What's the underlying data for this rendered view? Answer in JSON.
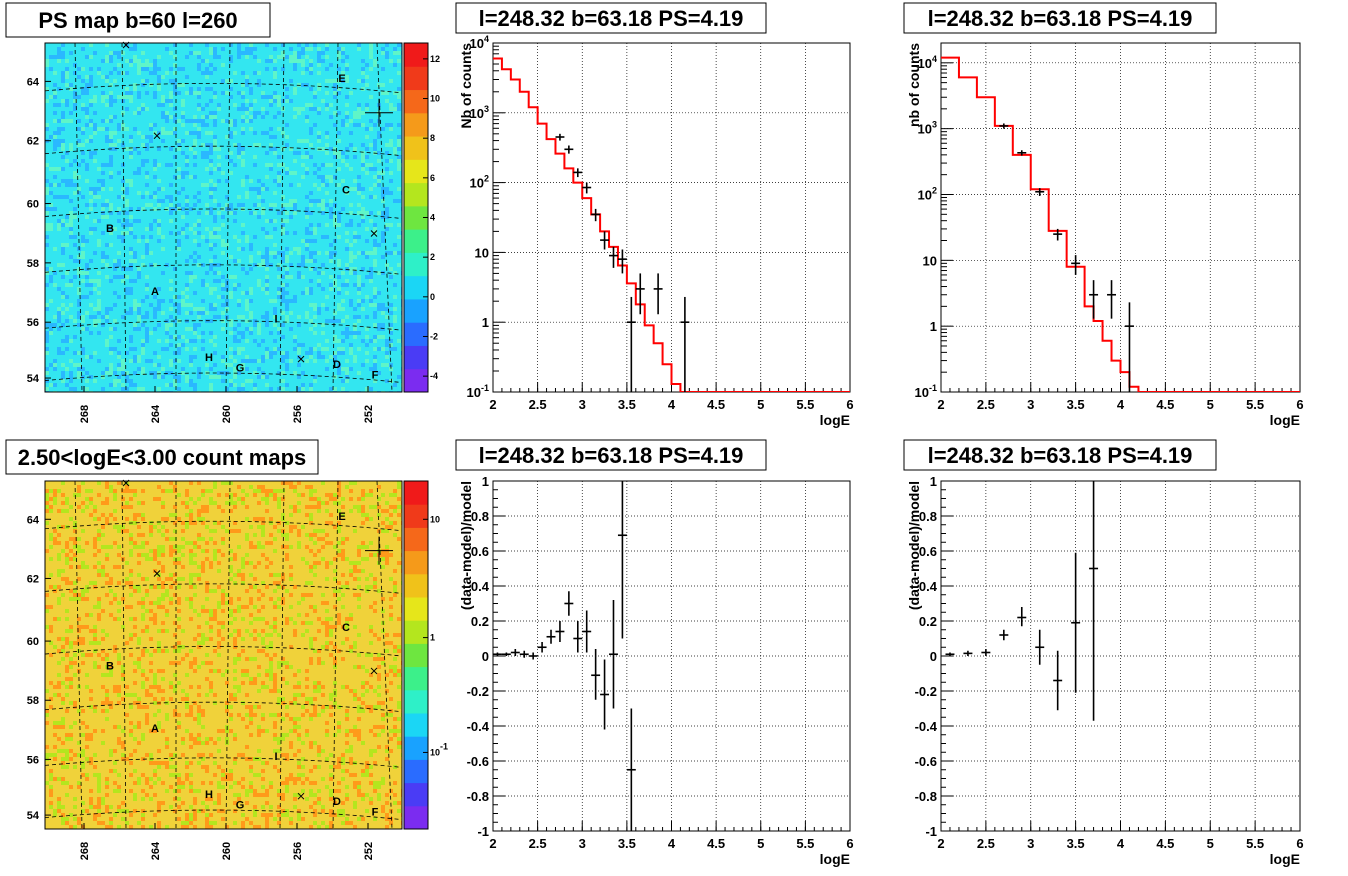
{
  "panels": {
    "map_top": {
      "title": "PS map b=60 l=260",
      "type": "heatmap",
      "x_ticks": [
        "268",
        "264",
        "260",
        "256",
        "252"
      ],
      "y_ticks": [
        "54",
        "56",
        "58",
        "60",
        "62",
        "64"
      ],
      "colorbar_ticks": [
        "-4",
        "-2",
        "0",
        "2",
        "4",
        "6",
        "8",
        "10",
        "12"
      ],
      "labels": [
        "A",
        "B",
        "C",
        "D",
        "E",
        "F",
        "G",
        "H",
        "I"
      ],
      "colors": {
        "base": "#33e6f0",
        "dark": "#2ab8ff",
        "light": "#5ff5c8"
      }
    },
    "map_bottom": {
      "title": "2.50<logE<3.00 count maps",
      "type": "heatmap",
      "x_ticks": [
        "268",
        "264",
        "260",
        "256",
        "252"
      ],
      "y_ticks": [
        "54",
        "56",
        "58",
        "60",
        "62",
        "64"
      ],
      "colorbar_ticks": [
        "10",
        "1",
        "10-1"
      ],
      "labels": [
        "A",
        "B",
        "C",
        "D",
        "E",
        "F",
        "G",
        "H",
        "I"
      ],
      "colors": {
        "base": "#f0d23a",
        "dark": "#ff9a1a",
        "light": "#b4e61e"
      }
    },
    "spec1": {
      "title": "l=248.32 b=63.18 PS=4.19",
      "xlabel": "logE",
      "ylabel": "Nb of counts"
    },
    "spec2": {
      "title": "l=248.32 b=63.18 PS=4.19",
      "xlabel": "logE",
      "ylabel": "nb of counts"
    },
    "res1": {
      "title": "l=248.32 b=63.18 PS=4.19",
      "xlabel": "logE",
      "ylabel": "(data-model)/model"
    },
    "res2": {
      "title": "l=248.32 b=63.18 PS=4.19",
      "xlabel": "logE",
      "ylabel": "(data-model)/model"
    }
  },
  "chart_data": [
    {
      "type": "line",
      "name": "spec1",
      "x_ticks": [
        "2",
        "2.5",
        "3",
        "3.5",
        "4",
        "4.5",
        "5",
        "5.5",
        "6"
      ],
      "xlim": [
        2,
        6
      ],
      "ylim": [
        0.1,
        10000
      ],
      "log_y": true,
      "y_ticks": [
        "10-1",
        "1",
        "10",
        "102",
        "103",
        "104"
      ],
      "grid": true,
      "model_step": {
        "edges": [
          2.0,
          2.1,
          2.2,
          2.3,
          2.4,
          2.5,
          2.6,
          2.7,
          2.8,
          2.9,
          3.0,
          3.1,
          3.2,
          3.3,
          3.4,
          3.5,
          3.6,
          3.7,
          3.8,
          3.9,
          4.0,
          4.1,
          4.2,
          6.0
        ],
        "values": [
          6000,
          4200,
          3000,
          2000,
          1200,
          700,
          420,
          260,
          160,
          100,
          60,
          35,
          20,
          12,
          6.5,
          3.6,
          1.8,
          0.9,
          0.5,
          0.25,
          0.13,
          0.1,
          0.1
        ]
      },
      "points": [
        {
          "x": 2.75,
          "y": 450,
          "lo": 400,
          "hi": 500
        },
        {
          "x": 2.85,
          "y": 300,
          "lo": 260,
          "hi": 340
        },
        {
          "x": 2.95,
          "y": 140,
          "lo": 120,
          "hi": 160
        },
        {
          "x": 3.05,
          "y": 85,
          "lo": 70,
          "hi": 100
        },
        {
          "x": 3.15,
          "y": 35,
          "lo": 28,
          "hi": 42
        },
        {
          "x": 3.25,
          "y": 15,
          "lo": 11,
          "hi": 20
        },
        {
          "x": 3.35,
          "y": 9,
          "lo": 6,
          "hi": 12
        },
        {
          "x": 3.45,
          "y": 8,
          "lo": 5,
          "hi": 11
        },
        {
          "x": 3.55,
          "y": 1,
          "lo": 0.1,
          "hi": 2.3
        },
        {
          "x": 3.65,
          "y": 3,
          "lo": 1.3,
          "hi": 5
        },
        {
          "x": 3.85,
          "y": 3,
          "lo": 1.3,
          "hi": 5
        },
        {
          "x": 4.15,
          "y": 1,
          "lo": 0.1,
          "hi": 2.3
        }
      ],
      "title": "l=248.32 b=63.18 PS=4.19",
      "xlabel": "logE",
      "ylabel": "Nb of counts"
    },
    {
      "type": "line",
      "name": "spec2",
      "x_ticks": [
        "2",
        "2.5",
        "3",
        "3.5",
        "4",
        "4.5",
        "5",
        "5.5",
        "6"
      ],
      "xlim": [
        2,
        6
      ],
      "ylim": [
        0.1,
        20000
      ],
      "log_y": true,
      "y_ticks": [
        "10-1",
        "1",
        "10",
        "102",
        "103",
        "104"
      ],
      "grid": true,
      "model_step": {
        "edges": [
          2.0,
          2.2,
          2.4,
          2.6,
          2.8,
          3.0,
          3.2,
          3.4,
          3.6,
          3.7,
          3.8,
          3.9,
          4.0,
          4.1,
          4.2,
          6.0
        ],
        "values": [
          12000,
          6000,
          3000,
          1100,
          400,
          120,
          28,
          8,
          2,
          1.2,
          0.6,
          0.3,
          0.2,
          0.12,
          0.1
        ]
      },
      "points": [
        {
          "x": 2.7,
          "y": 1100,
          "lo": 1000,
          "hi": 1200
        },
        {
          "x": 2.9,
          "y": 430,
          "lo": 390,
          "hi": 470
        },
        {
          "x": 3.1,
          "y": 110,
          "lo": 95,
          "hi": 125
        },
        {
          "x": 3.3,
          "y": 25,
          "lo": 20,
          "hi": 30
        },
        {
          "x": 3.5,
          "y": 9,
          "lo": 6,
          "hi": 12
        },
        {
          "x": 3.7,
          "y": 3,
          "lo": 1.3,
          "hi": 5
        },
        {
          "x": 3.9,
          "y": 3,
          "lo": 1.3,
          "hi": 5
        },
        {
          "x": 4.1,
          "y": 1,
          "lo": 0.1,
          "hi": 2.3
        }
      ],
      "title": "l=248.32 b=63.18 PS=4.19",
      "xlabel": "logE",
      "ylabel": "nb of counts"
    },
    {
      "type": "scatter",
      "name": "res1",
      "x_ticks": [
        "2",
        "2.5",
        "3",
        "3.5",
        "4",
        "4.5",
        "5",
        "5.5",
        "6"
      ],
      "xlim": [
        2,
        6
      ],
      "ylim": [
        -1,
        1
      ],
      "y_ticks": [
        "-1",
        "-0.8",
        "-0.6",
        "-0.4",
        "-0.2",
        "0",
        "0.2",
        "0.4",
        "0.6",
        "0.8",
        "1"
      ],
      "grid": true,
      "points": [
        {
          "x": 2.05,
          "y": 0.01,
          "lo": 0.0,
          "hi": 0.02
        },
        {
          "x": 2.15,
          "y": 0.01,
          "lo": 0.0,
          "hi": 0.02
        },
        {
          "x": 2.25,
          "y": 0.02,
          "lo": 0.0,
          "hi": 0.04
        },
        {
          "x": 2.35,
          "y": 0.01,
          "lo": -0.01,
          "hi": 0.03
        },
        {
          "x": 2.45,
          "y": 0.0,
          "lo": -0.02,
          "hi": 0.02
        },
        {
          "x": 2.55,
          "y": 0.05,
          "lo": 0.02,
          "hi": 0.08
        },
        {
          "x": 2.65,
          "y": 0.11,
          "lo": 0.07,
          "hi": 0.15
        },
        {
          "x": 2.75,
          "y": 0.14,
          "lo": 0.08,
          "hi": 0.2
        },
        {
          "x": 2.85,
          "y": 0.3,
          "lo": 0.23,
          "hi": 0.37
        },
        {
          "x": 2.95,
          "y": 0.1,
          "lo": 0.02,
          "hi": 0.2
        },
        {
          "x": 3.05,
          "y": 0.14,
          "lo": 0.02,
          "hi": 0.26
        },
        {
          "x": 3.15,
          "y": -0.11,
          "lo": -0.25,
          "hi": 0.04
        },
        {
          "x": 3.25,
          "y": -0.22,
          "lo": -0.42,
          "hi": -0.02
        },
        {
          "x": 3.35,
          "y": 0.01,
          "lo": -0.3,
          "hi": 0.32
        },
        {
          "x": 3.45,
          "y": 0.69,
          "lo": 0.1,
          "hi": 1.0
        },
        {
          "x": 3.55,
          "y": -0.65,
          "lo": -1.0,
          "hi": -0.3
        }
      ],
      "title": "l=248.32 b=63.18 PS=4.19",
      "xlabel": "logE",
      "ylabel": "(data-model)/model"
    },
    {
      "type": "scatter",
      "name": "res2",
      "x_ticks": [
        "2",
        "2.5",
        "3",
        "3.5",
        "4",
        "4.5",
        "5",
        "5.5",
        "6"
      ],
      "xlim": [
        2,
        6
      ],
      "ylim": [
        -1,
        1
      ],
      "y_ticks": [
        "-1",
        "-0.8",
        "-0.6",
        "-0.4",
        "-0.2",
        "0",
        "0.2",
        "0.4",
        "0.6",
        "0.8",
        "1"
      ],
      "grid": true,
      "points": [
        {
          "x": 2.1,
          "y": 0.01,
          "lo": 0.0,
          "hi": 0.02
        },
        {
          "x": 2.3,
          "y": 0.015,
          "lo": 0.0,
          "hi": 0.03
        },
        {
          "x": 2.5,
          "y": 0.02,
          "lo": 0.0,
          "hi": 0.04
        },
        {
          "x": 2.7,
          "y": 0.12,
          "lo": 0.09,
          "hi": 0.15
        },
        {
          "x": 2.9,
          "y": 0.22,
          "lo": 0.17,
          "hi": 0.28
        },
        {
          "x": 3.1,
          "y": 0.05,
          "lo": -0.05,
          "hi": 0.15
        },
        {
          "x": 3.3,
          "y": -0.14,
          "lo": -0.31,
          "hi": 0.03
        },
        {
          "x": 3.5,
          "y": 0.19,
          "lo": -0.21,
          "hi": 0.59
        },
        {
          "x": 3.7,
          "y": 0.5,
          "lo": -0.37,
          "hi": 1.0
        }
      ],
      "title": "l=248.32 b=63.18 PS=4.19",
      "xlabel": "logE",
      "ylabel": "(data-model)/model"
    }
  ]
}
